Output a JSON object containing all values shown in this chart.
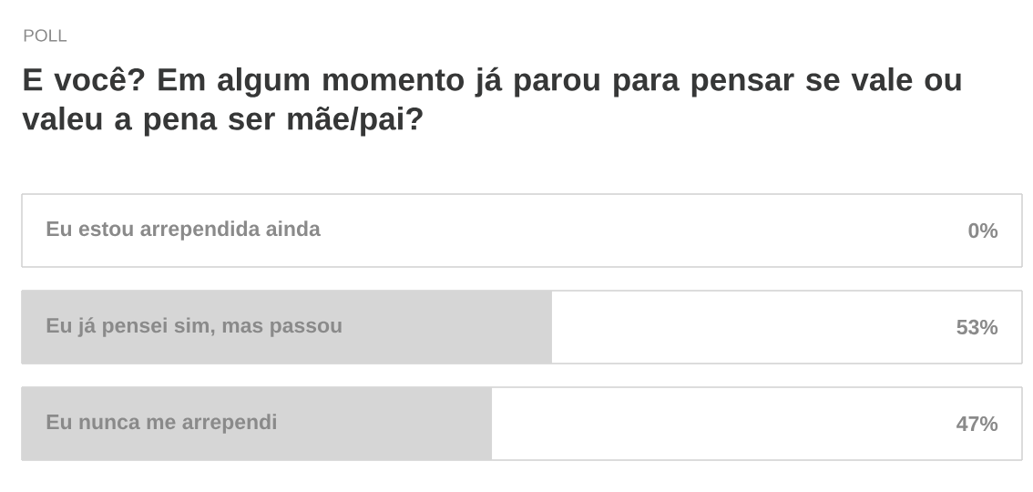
{
  "chart_data": {
    "type": "bar",
    "orientation": "horizontal",
    "subtitle": "POLL",
    "title": "E você? Em algum momento já parou para pensar se vale ou valeu a pena ser mãe/pai?",
    "categories": [
      "Eu estou arrependida ainda",
      "Eu já pensei sim, mas passou",
      "Eu nunca me arrependi"
    ],
    "values": [
      0,
      53,
      47
    ],
    "value_labels": [
      "0%",
      "53%",
      "47%"
    ],
    "color": "#d6d6d6",
    "xlim": [
      0,
      100
    ]
  }
}
